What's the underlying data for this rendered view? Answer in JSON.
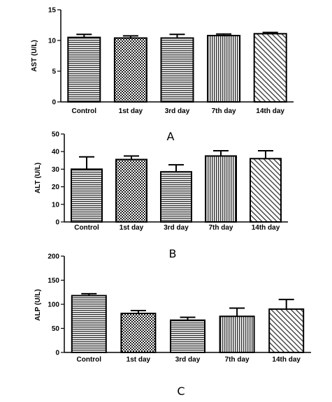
{
  "chart_data": [
    {
      "type": "bar",
      "panel_label": "A",
      "categories": [
        "Control",
        "1st day",
        "3rd day",
        "7th day",
        "14th day"
      ],
      "values": [
        10.5,
        10.4,
        10.4,
        10.8,
        11.1
      ],
      "errors": [
        0.5,
        0.35,
        0.6,
        0.25,
        0.2
      ],
      "ylabel": "AST (U/L)",
      "ylim": [
        0,
        15
      ],
      "yticks": [
        0,
        5,
        10,
        15
      ],
      "patterns": [
        "hstripe",
        "checker",
        "hstripe",
        "vstripe",
        "diag"
      ]
    },
    {
      "type": "bar",
      "panel_label": "B",
      "categories": [
        "Control",
        "1st day",
        "3rd day",
        "7th day",
        "14th day"
      ],
      "values": [
        30,
        35.5,
        28.5,
        37.5,
        36
      ],
      "errors": [
        7,
        2,
        4,
        3,
        4.5
      ],
      "ylabel": "ALT (U/L)",
      "ylim": [
        0,
        50
      ],
      "yticks": [
        0,
        10,
        20,
        30,
        40,
        50
      ],
      "patterns": [
        "hstripe",
        "checker",
        "hstripe",
        "vstripe",
        "diag"
      ]
    },
    {
      "type": "bar",
      "panel_label": "C",
      "categories": [
        "Control",
        "1st day",
        "3rd day",
        "7th day",
        "14th day"
      ],
      "values": [
        118,
        81,
        67,
        75,
        90
      ],
      "errors": [
        4,
        6,
        6,
        17,
        20
      ],
      "ylabel": "ALP (U/L)",
      "ylim": [
        0,
        200
      ],
      "yticks": [
        0,
        50,
        100,
        150,
        200
      ],
      "patterns": [
        "hstripe",
        "checker",
        "hstripe",
        "vstripe",
        "diag"
      ]
    }
  ]
}
